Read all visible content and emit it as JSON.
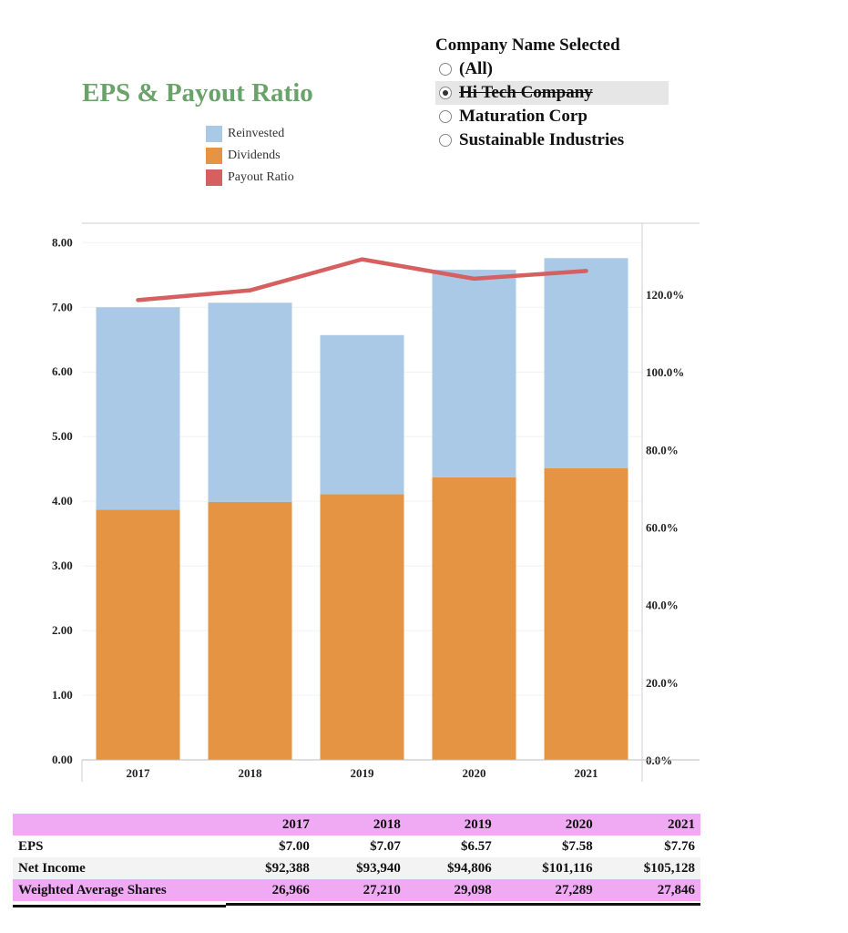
{
  "title": "EPS & Payout Ratio",
  "legend": [
    {
      "label": "Reinvested",
      "color": "#a9c9e6"
    },
    {
      "label": "Dividends",
      "color": "#e59444"
    },
    {
      "label": "Payout Ratio",
      "color": "#d65f5f"
    }
  ],
  "filter": {
    "title": "Company Name Selected",
    "options": [
      {
        "label": "(All)",
        "selected": false
      },
      {
        "label": "Hi Tech Company",
        "selected": true
      },
      {
        "label": "Maturation Corp",
        "selected": false
      },
      {
        "label": "Sustainable Industries",
        "selected": false
      }
    ]
  },
  "chart_data": {
    "type": "bar",
    "stacked": true,
    "categories": [
      "2017",
      "2018",
      "2019",
      "2020",
      "2021"
    ],
    "series": [
      {
        "name": "Dividends",
        "values": [
          3.87,
          3.99,
          4.11,
          4.37,
          4.51
        ],
        "color": "#e59444"
      },
      {
        "name": "Reinvested",
        "values": [
          3.13,
          3.08,
          2.46,
          3.21,
          3.25
        ],
        "color": "#a9c9e6"
      }
    ],
    "line_series": {
      "name": "Payout Ratio",
      "axis": "right",
      "values": [
        118.5,
        121.0,
        129.0,
        124.0,
        126.0
      ],
      "color": "#d65f5f"
    },
    "y_left": {
      "range": [
        0,
        8.3
      ],
      "ticks": [
        "0.00",
        "1.00",
        "2.00",
        "3.00",
        "4.00",
        "5.00",
        "6.00",
        "7.00",
        "8.00"
      ]
    },
    "y_right": {
      "range": [
        0,
        138.3
      ],
      "ticks": [
        "0.0%",
        "20.0%",
        "40.0%",
        "60.0%",
        "80.0%",
        "100.0%",
        "120.0%"
      ]
    },
    "grid": true
  },
  "table": {
    "columns": [
      "2017",
      "2018",
      "2019",
      "2020",
      "2021"
    ],
    "rows": [
      {
        "label": "EPS",
        "values": [
          "$7.00",
          "$7.07",
          "$6.57",
          "$7.58",
          "$7.76"
        ]
      },
      {
        "label": "Net Income",
        "values": [
          "$92,388",
          "$93,940",
          "$94,806",
          "$101,116",
          "$105,128"
        ]
      },
      {
        "label": "Weighted Average Shares",
        "values": [
          "26,966",
          "27,210",
          "29,098",
          "27,289",
          "27,846"
        ]
      }
    ]
  }
}
